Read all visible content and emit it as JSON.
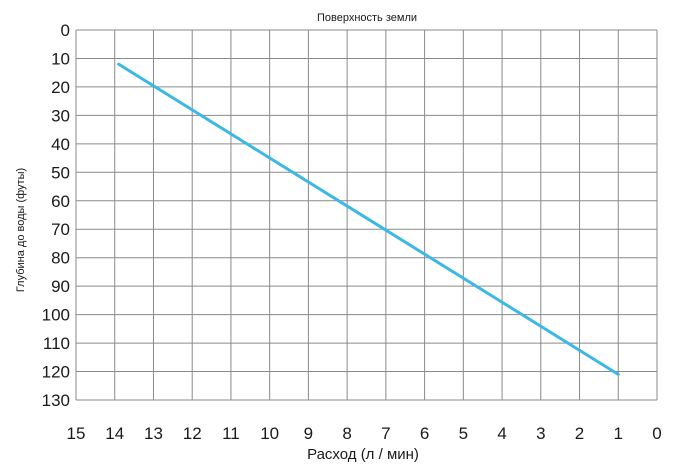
{
  "chart_data": {
    "type": "line",
    "title": "Поверхность земли",
    "xlabel": "Расход (л / мин)",
    "ylabel": "Глубина до воды (футы)",
    "x_reversed": true,
    "y_inverted": true,
    "xlim": [
      15,
      0
    ],
    "ylim": [
      0,
      130
    ],
    "grid": true,
    "x_ticks": [
      15,
      14,
      13,
      12,
      11,
      10,
      9,
      8,
      7,
      6,
      5,
      4,
      3,
      2,
      1,
      0
    ],
    "y_ticks": [
      0,
      10,
      20,
      30,
      40,
      50,
      60,
      70,
      80,
      90,
      100,
      110,
      120,
      130
    ],
    "series": [
      {
        "color": "#3bb8e6",
        "points": [
          {
            "x": 13.9,
            "y": 12
          },
          {
            "x": 1.0,
            "y": 121
          }
        ]
      }
    ]
  },
  "colors": {
    "grid": "#8a8a8a",
    "line": "#3bb8e6"
  }
}
